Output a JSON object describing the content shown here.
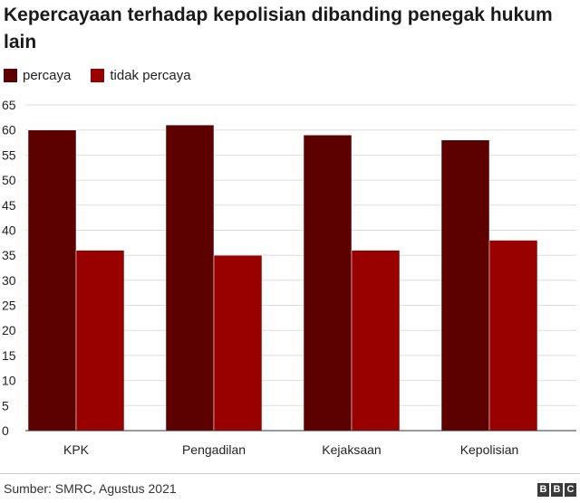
{
  "title": "Kepercayaan terhadap kepolisian dibanding penegak hukum lain",
  "legend": [
    {
      "label": "percaya",
      "color": "#5c0000"
    },
    {
      "label": "tidak percaya",
      "color": "#990000"
    }
  ],
  "chart_data": {
    "type": "bar",
    "categories": [
      "KPK",
      "Pengadilan",
      "Kejaksaan",
      "Kepolisian"
    ],
    "series": [
      {
        "name": "percaya",
        "values": [
          60,
          61,
          59,
          58
        ],
        "color": "#5c0000"
      },
      {
        "name": "tidak percaya",
        "values": [
          36,
          35,
          36,
          38
        ],
        "color": "#990000"
      }
    ],
    "yticks": [
      "0",
      "5",
      "10",
      "15",
      "20",
      "25",
      "30",
      "35",
      "40",
      "45",
      "50",
      "55",
      "60",
      "65"
    ],
    "ylim": [
      0,
      65
    ],
    "grid": true,
    "title": "Kepercayaan terhadap kepolisian dibanding penegak hukum lain",
    "xlabel": "",
    "ylabel": ""
  },
  "source": "Sumber: SMRC, Agustus 2021",
  "logo": {
    "letters": [
      "B",
      "B",
      "C"
    ]
  }
}
